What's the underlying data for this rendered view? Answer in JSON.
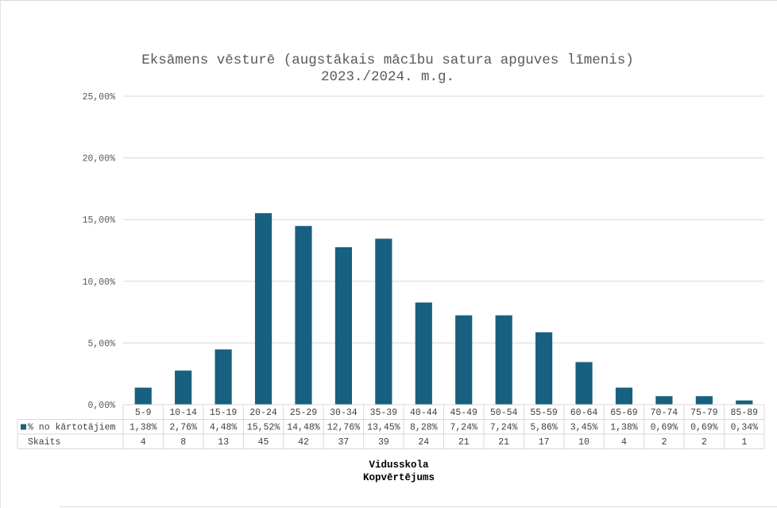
{
  "chart_data": {
    "type": "bar",
    "title_line1": "Eksāmens vēsturē (augstākais mācību satura apguves līmenis)",
    "title_line2": "2023./2024. m.g.",
    "categories": [
      "5-9",
      "10-14",
      "15-19",
      "20-24",
      "25-29",
      "30-34",
      "35-39",
      "40-44",
      "45-49",
      "50-54",
      "55-59",
      "60-64",
      "65-69",
      "70-74",
      "75-79",
      "85-89"
    ],
    "series": [
      {
        "name": "% no kārtotājiem",
        "values": [
          1.38,
          2.76,
          4.48,
          15.52,
          14.48,
          12.76,
          13.45,
          8.28,
          7.24,
          7.24,
          5.86,
          3.45,
          1.38,
          0.69,
          0.69,
          0.34
        ],
        "color": "#17607f"
      }
    ],
    "table_rows": [
      {
        "label": "% no kārtotājiem",
        "cells": [
          "1,38%",
          "2,76%",
          "4,48%",
          "15,52%",
          "14,48%",
          "12,76%",
          "13,45%",
          "8,28%",
          "7,24%",
          "7,24%",
          "5,86%",
          "3,45%",
          "1,38%",
          "0,69%",
          "0,69%",
          "0,34%"
        ]
      },
      {
        "label": "Skaits",
        "cells": [
          "4",
          "8",
          "13",
          "45",
          "42",
          "37",
          "39",
          "24",
          "21",
          "21",
          "17",
          "10",
          "4",
          "2",
          "2",
          "1"
        ]
      }
    ],
    "y_ticks": [
      "0,00%",
      "5,00%",
      "10,00%",
      "15,00%",
      "20,00%",
      "25,00%"
    ],
    "ylim": [
      0,
      25
    ],
    "xlabel_line1": "Vidusskola",
    "xlabel_line2": "Kopvērtējums",
    "grid": true
  },
  "colors": {
    "bar": "#17607f",
    "grid": "#d9d9d9",
    "text": "#404040"
  }
}
